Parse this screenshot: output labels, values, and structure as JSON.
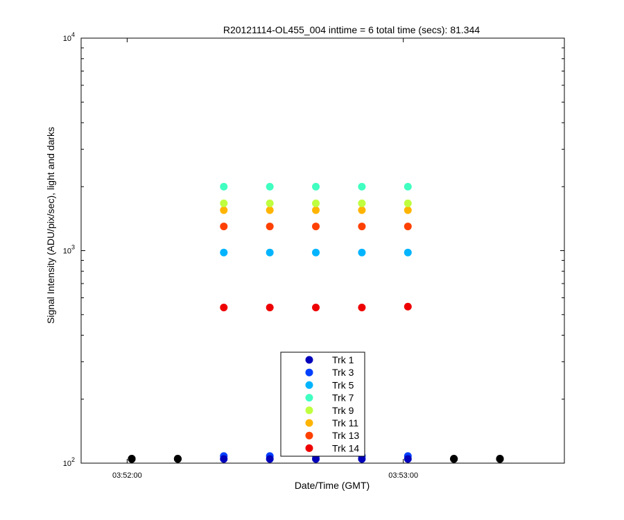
{
  "chart_data": {
    "type": "scatter",
    "title": "R20121114-OL455_004 inttime = 6 total time (secs): 81.344",
    "xlabel": "Date/Time (GMT)",
    "ylabel": "Signal Intensity (ADU/pix/sec), light and darks",
    "y_scale": "log",
    "ylim": [
      100,
      10000
    ],
    "xlim": [
      "03:51:50",
      "03:53:35"
    ],
    "x_ticks": [
      "03:52:00",
      "03:53:00"
    ],
    "y_ticks": [
      {
        "value": 100,
        "base": "10",
        "exp": "2"
      },
      {
        "value": 1000,
        "base": "10",
        "exp": "3"
      },
      {
        "value": 10000,
        "base": "10",
        "exp": "4"
      }
    ],
    "grid": false,
    "legend_position": "bottom-center",
    "series": [
      {
        "name": "Trk 1",
        "color": "#0000bb",
        "x": [
          "03:52:21",
          "03:52:31",
          "03:52:41",
          "03:52:51",
          "03:53:01"
        ],
        "y": [
          101,
          101,
          101,
          101,
          101
        ]
      },
      {
        "name": "Trk 3",
        "color": "#0040ff",
        "x": [
          "03:52:21",
          "03:52:31",
          "03:52:41",
          "03:52:51",
          "03:53:01"
        ],
        "y": [
          108,
          108,
          108,
          108,
          108
        ]
      },
      {
        "name": "Trk 5",
        "color": "#00b4ff",
        "x": [
          "03:52:21",
          "03:52:31",
          "03:52:41",
          "03:52:51",
          "03:53:01"
        ],
        "y": [
          980,
          980,
          980,
          980,
          980
        ]
      },
      {
        "name": "Trk 7",
        "color": "#40ffc0",
        "x": [
          "03:52:21",
          "03:52:31",
          "03:52:41",
          "03:52:51",
          "03:53:01"
        ],
        "y": [
          2000,
          2000,
          2000,
          2000,
          2000
        ]
      },
      {
        "name": "Trk 9",
        "color": "#bfff40",
        "x": [
          "03:52:21",
          "03:52:31",
          "03:52:41",
          "03:52:51",
          "03:53:01"
        ],
        "y": [
          1670,
          1670,
          1670,
          1670,
          1670
        ]
      },
      {
        "name": "Trk 11",
        "color": "#ffb400",
        "x": [
          "03:52:21",
          "03:52:31",
          "03:52:41",
          "03:52:51",
          "03:53:01"
        ],
        "y": [
          1550,
          1550,
          1550,
          1550,
          1550
        ]
      },
      {
        "name": "Trk 13",
        "color": "#ff4000",
        "x": [
          "03:52:21",
          "03:52:31",
          "03:52:41",
          "03:52:51",
          "03:53:01"
        ],
        "y": [
          1300,
          1300,
          1300,
          1300,
          1300
        ]
      },
      {
        "name": "Trk 14",
        "color": "#ee0000",
        "x": [
          "03:52:21",
          "03:52:31",
          "03:52:41",
          "03:52:51",
          "03:53:01"
        ],
        "y": [
          540,
          540,
          540,
          540,
          545
        ]
      },
      {
        "color": "#000000",
        "x": [
          "03:52:01",
          "03:52:01",
          "03:52:01",
          "03:52:11",
          "03:52:11",
          "03:52:11",
          "03:53:11",
          "03:53:11",
          "03:53:11",
          "03:53:21",
          "03:53:21",
          "03:53:21"
        ],
        "y": [
          101,
          103,
          105,
          101,
          103,
          105,
          101,
          103,
          105,
          101,
          103,
          105
        ]
      }
    ]
  }
}
